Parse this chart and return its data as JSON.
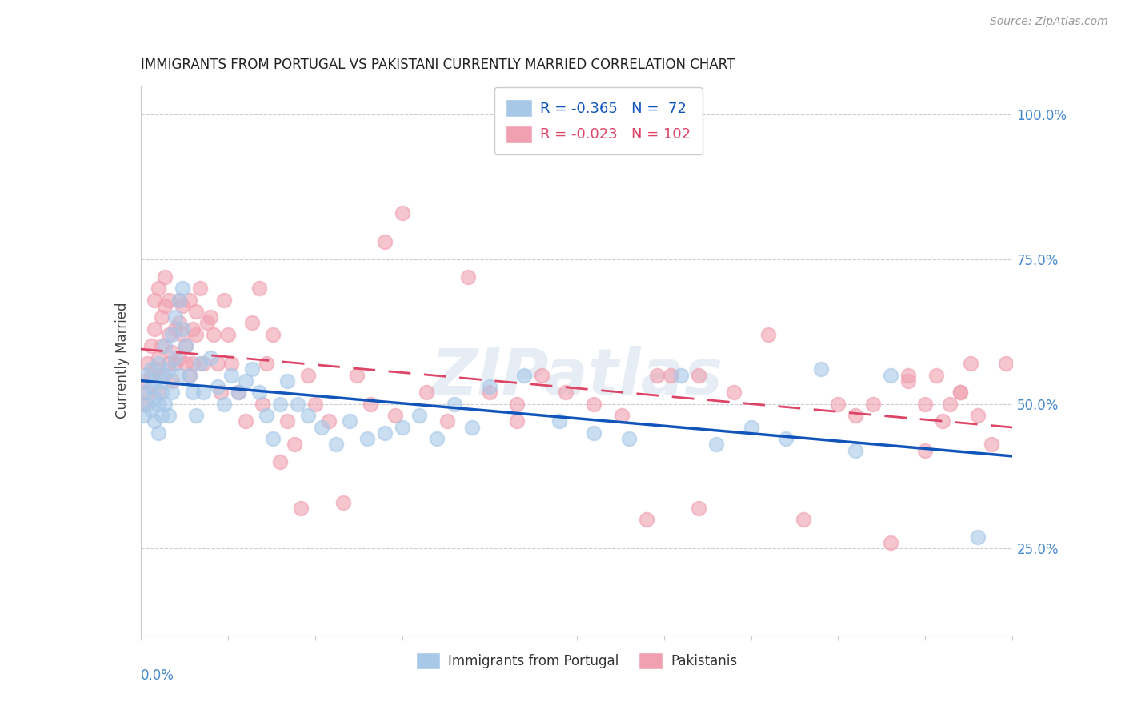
{
  "title": "IMMIGRANTS FROM PORTUGAL VS PAKISTANI CURRENTLY MARRIED CORRELATION CHART",
  "source": "Source: ZipAtlas.com",
  "ylabel": "Currently Married",
  "y_tick_positions": [
    0.25,
    0.5,
    0.75,
    1.0
  ],
  "x_range": [
    0.0,
    0.25
  ],
  "y_range": [
    0.1,
    1.05
  ],
  "legend_title_blue": "Immigrants from Portugal",
  "legend_title_pink": "Pakistanis",
  "portugal_color": "#a8c8e8",
  "pakistan_color": "#f0a0b0",
  "portugal_line_color": "#1155bb",
  "pakistan_line_color": "#dd4466",
  "watermark": "ZIPatlas",
  "portugal_R": -0.365,
  "portugal_N": 72,
  "pakistan_R": -0.023,
  "pakistan_N": 102,
  "portugal_scatter_x": [
    0.001,
    0.001,
    0.002,
    0.002,
    0.003,
    0.003,
    0.003,
    0.004,
    0.004,
    0.004,
    0.005,
    0.005,
    0.005,
    0.006,
    0.006,
    0.006,
    0.007,
    0.007,
    0.007,
    0.008,
    0.008,
    0.009,
    0.009,
    0.01,
    0.01,
    0.011,
    0.011,
    0.012,
    0.012,
    0.013,
    0.014,
    0.015,
    0.016,
    0.017,
    0.018,
    0.02,
    0.022,
    0.024,
    0.026,
    0.028,
    0.03,
    0.032,
    0.034,
    0.036,
    0.038,
    0.04,
    0.042,
    0.045,
    0.048,
    0.052,
    0.056,
    0.06,
    0.065,
    0.07,
    0.075,
    0.08,
    0.085,
    0.09,
    0.095,
    0.1,
    0.11,
    0.12,
    0.13,
    0.14,
    0.155,
    0.165,
    0.175,
    0.185,
    0.195,
    0.205,
    0.215,
    0.24
  ],
  "portugal_scatter_y": [
    0.52,
    0.48,
    0.55,
    0.5,
    0.53,
    0.49,
    0.56,
    0.51,
    0.54,
    0.47,
    0.57,
    0.5,
    0.45,
    0.54,
    0.48,
    0.52,
    0.6,
    0.55,
    0.5,
    0.56,
    0.48,
    0.62,
    0.52,
    0.65,
    0.58,
    0.68,
    0.55,
    0.63,
    0.7,
    0.6,
    0.55,
    0.52,
    0.48,
    0.57,
    0.52,
    0.58,
    0.53,
    0.5,
    0.55,
    0.52,
    0.54,
    0.56,
    0.52,
    0.48,
    0.44,
    0.5,
    0.54,
    0.5,
    0.48,
    0.46,
    0.43,
    0.47,
    0.44,
    0.45,
    0.46,
    0.48,
    0.44,
    0.5,
    0.46,
    0.53,
    0.55,
    0.47,
    0.45,
    0.44,
    0.55,
    0.43,
    0.46,
    0.44,
    0.56,
    0.42,
    0.55,
    0.27
  ],
  "pakistan_scatter_x": [
    0.001,
    0.001,
    0.002,
    0.002,
    0.003,
    0.003,
    0.004,
    0.004,
    0.004,
    0.005,
    0.005,
    0.005,
    0.006,
    0.006,
    0.006,
    0.007,
    0.007,
    0.008,
    0.008,
    0.008,
    0.009,
    0.009,
    0.01,
    0.01,
    0.011,
    0.011,
    0.011,
    0.012,
    0.012,
    0.013,
    0.013,
    0.014,
    0.014,
    0.015,
    0.015,
    0.016,
    0.016,
    0.017,
    0.018,
    0.019,
    0.02,
    0.021,
    0.022,
    0.023,
    0.024,
    0.025,
    0.026,
    0.028,
    0.03,
    0.032,
    0.034,
    0.036,
    0.038,
    0.04,
    0.042,
    0.044,
    0.046,
    0.048,
    0.05,
    0.054,
    0.058,
    0.062,
    0.066,
    0.07,
    0.075,
    0.082,
    0.088,
    0.094,
    0.1,
    0.108,
    0.115,
    0.122,
    0.13,
    0.138,
    0.145,
    0.152,
    0.16,
    0.17,
    0.18,
    0.19,
    0.2,
    0.21,
    0.215,
    0.22,
    0.225,
    0.23,
    0.235,
    0.24,
    0.244,
    0.248,
    0.22,
    0.225,
    0.228,
    0.232,
    0.235,
    0.238,
    0.205,
    0.148,
    0.073,
    0.035,
    0.108,
    0.16
  ],
  "pakistan_scatter_y": [
    0.54,
    0.5,
    0.57,
    0.52,
    0.6,
    0.55,
    0.63,
    0.56,
    0.68,
    0.52,
    0.58,
    0.7,
    0.55,
    0.6,
    0.65,
    0.72,
    0.67,
    0.57,
    0.62,
    0.68,
    0.54,
    0.59,
    0.57,
    0.63,
    0.68,
    0.64,
    0.58,
    0.62,
    0.67,
    0.57,
    0.6,
    0.55,
    0.68,
    0.57,
    0.63,
    0.62,
    0.66,
    0.7,
    0.57,
    0.64,
    0.65,
    0.62,
    0.57,
    0.52,
    0.68,
    0.62,
    0.57,
    0.52,
    0.47,
    0.64,
    0.7,
    0.57,
    0.62,
    0.4,
    0.47,
    0.43,
    0.32,
    0.55,
    0.5,
    0.47,
    0.33,
    0.55,
    0.5,
    0.78,
    0.83,
    0.52,
    0.47,
    0.72,
    0.52,
    0.5,
    0.55,
    0.52,
    0.5,
    0.48,
    0.3,
    0.55,
    0.55,
    0.52,
    0.62,
    0.3,
    0.5,
    0.5,
    0.26,
    0.55,
    0.5,
    0.47,
    0.52,
    0.48,
    0.43,
    0.57,
    0.54,
    0.42,
    0.55,
    0.5,
    0.52,
    0.57,
    0.48,
    0.55,
    0.48,
    0.5,
    0.47,
    0.32
  ]
}
